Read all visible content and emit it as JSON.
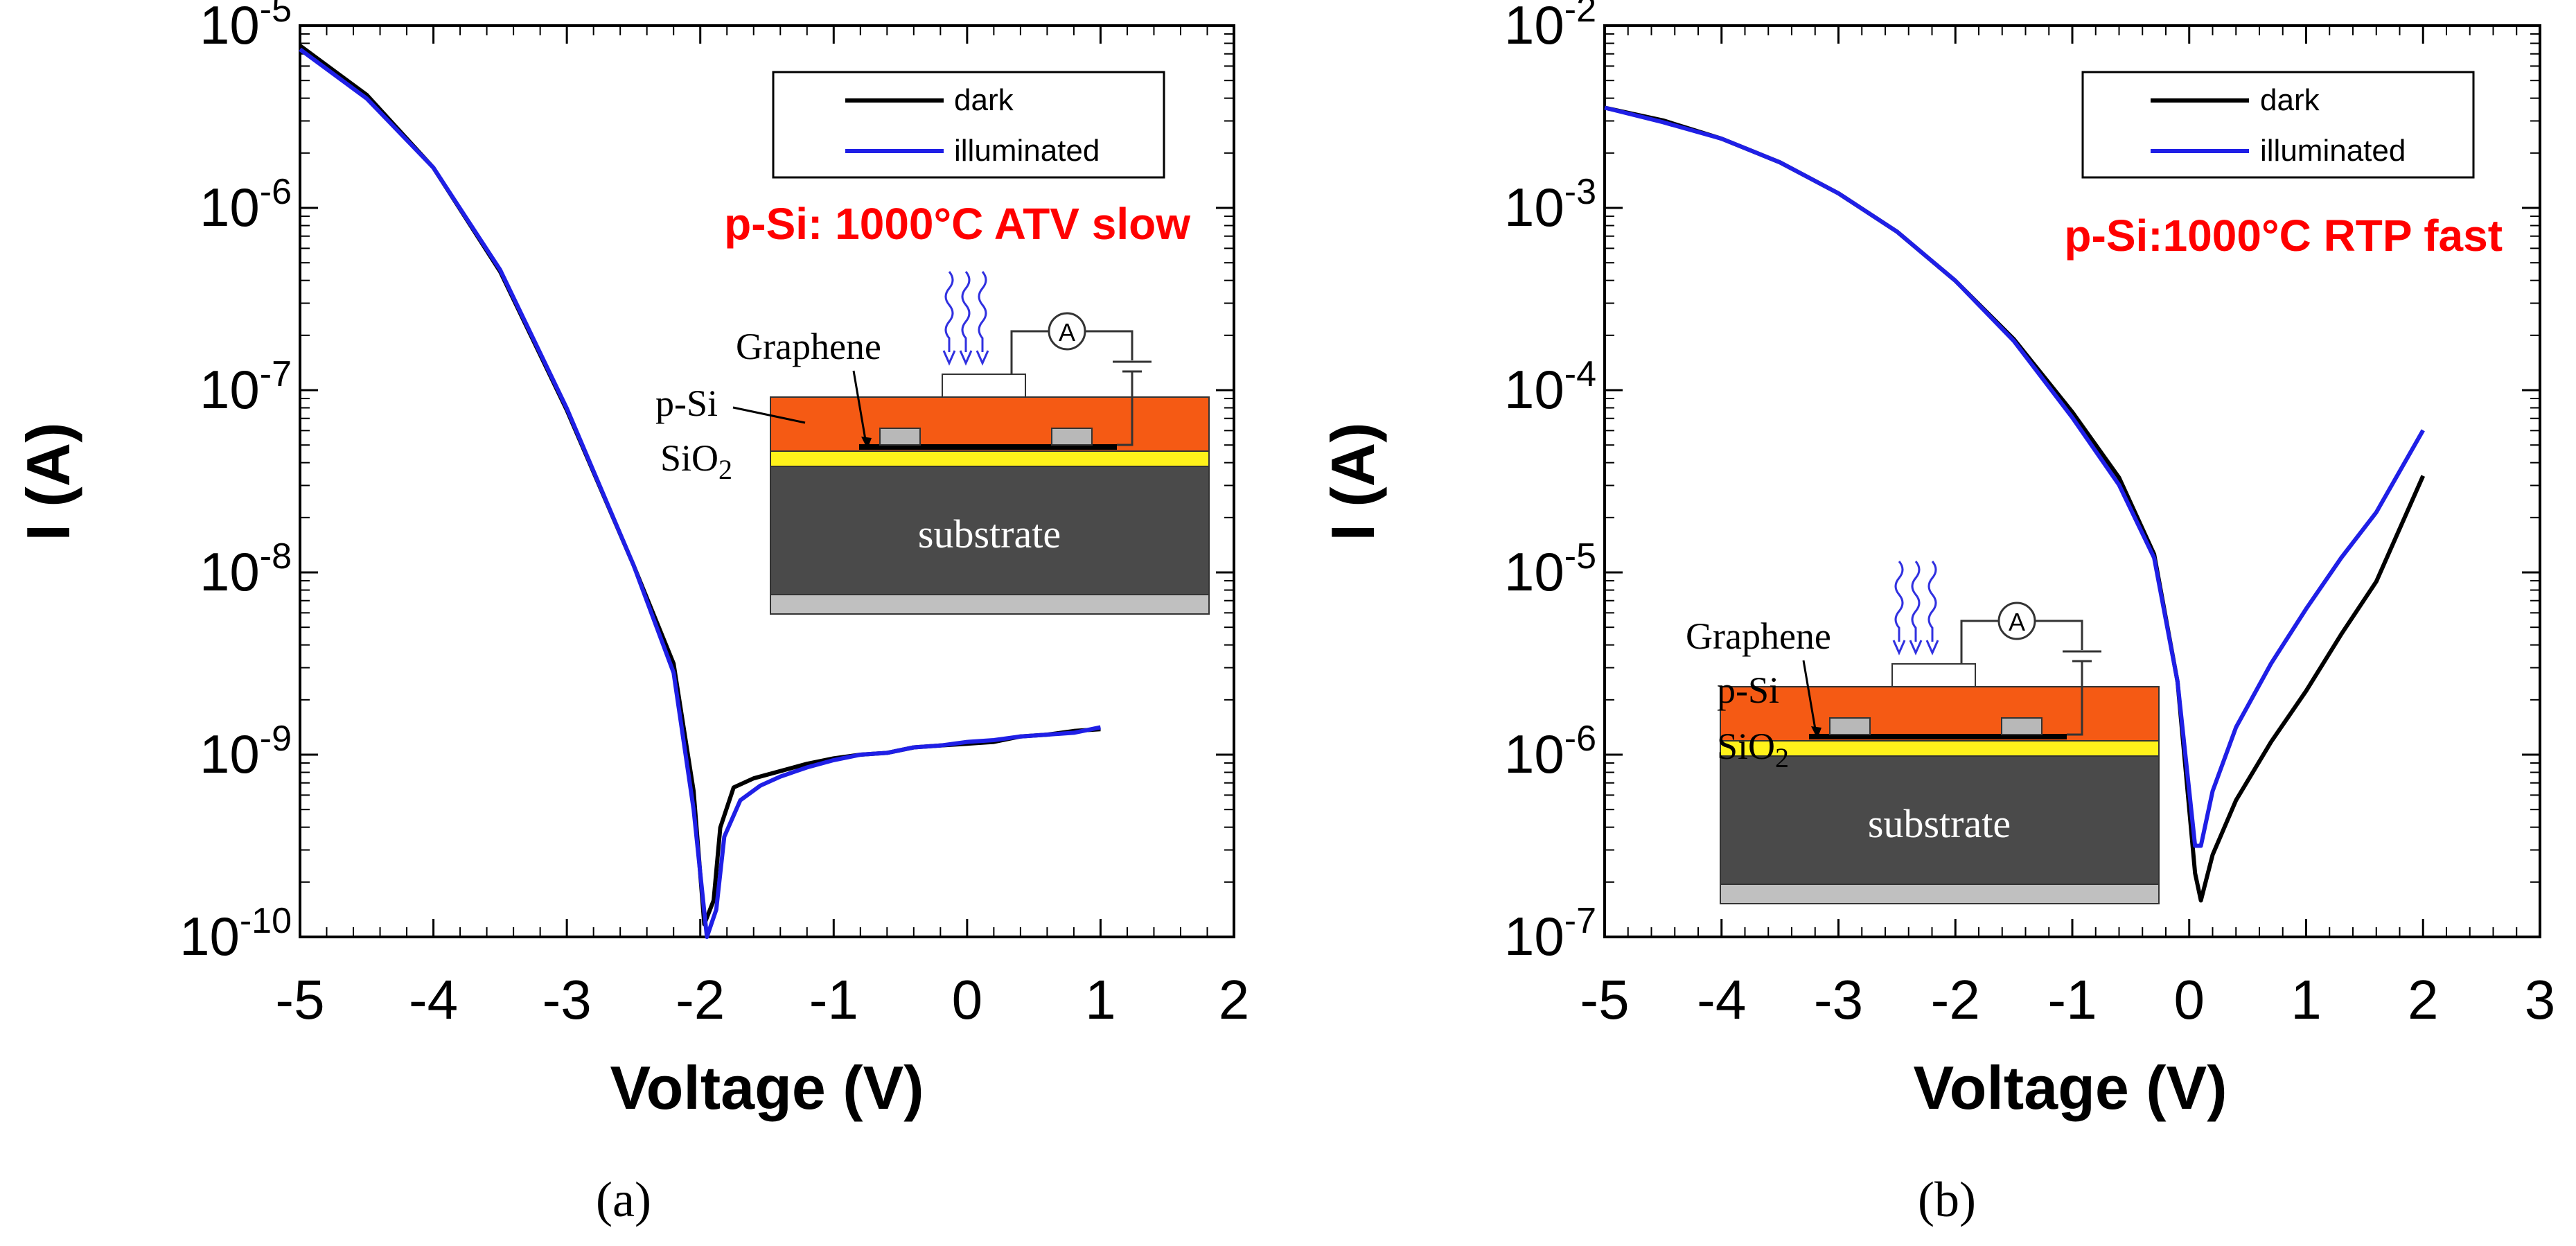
{
  "colors": {
    "dark": "#000000",
    "illuminated": "#1f1fe6",
    "annotation": "#ff0000",
    "psi_layer": "#f55a14",
    "sio2_layer": "#fff21a",
    "substrate": "#4a4a4a",
    "base_layer": "#c0c0c0",
    "contact": "#b8b8b8",
    "light_waves": "#3030e0"
  },
  "chart_data": [
    {
      "type": "line",
      "panel_label": "(a)",
      "annotation": "p-Si: 1000°C ATV slow",
      "xlabel": "Voltage (V)",
      "ylabel": "I (A)",
      "xlim": [
        -5,
        2
      ],
      "ylim_exp": [
        -10,
        -5
      ],
      "yscale": "log",
      "xticks": [
        "-5",
        "-4",
        "-3",
        "-2",
        "-1",
        "0",
        "1",
        "2"
      ],
      "yticks": [
        {
          "base": "10",
          "exp": "-10"
        },
        {
          "base": "10",
          "exp": "-9"
        },
        {
          "base": "10",
          "exp": "-8"
        },
        {
          "base": "10",
          "exp": "-7"
        },
        {
          "base": "10",
          "exp": "-6"
        },
        {
          "base": "10",
          "exp": "-5"
        }
      ],
      "legend": {
        "position": "top-right",
        "entries": [
          "dark",
          "illuminated"
        ]
      },
      "series": [
        {
          "name": "dark",
          "x": [
            -5,
            -4.5,
            -4,
            -3.5,
            -3,
            -2.5,
            -2.2,
            -2.05,
            -1.97,
            -1.9,
            -1.85,
            -1.75,
            -1.6,
            -1.4,
            -1.2,
            -1,
            -0.8,
            -0.6,
            -0.4,
            -0.2,
            0,
            0.2,
            0.4,
            0.6,
            0.8,
            1
          ],
          "logy": [
            -5.11,
            -5.38,
            -5.78,
            -6.35,
            -7.11,
            -7.96,
            -8.5,
            -9.2,
            -9.93,
            -9.8,
            -9.4,
            -9.18,
            -9.13,
            -9.09,
            -9.05,
            -9.02,
            -9.0,
            -8.99,
            -8.96,
            -8.95,
            -8.94,
            -8.93,
            -8.9,
            -8.89,
            -8.87,
            -8.86
          ]
        },
        {
          "name": "illuminated",
          "x": [
            -5,
            -4.5,
            -4,
            -3.5,
            -3,
            -2.5,
            -2.2,
            -2.05,
            -1.95,
            -1.88,
            -1.82,
            -1.7,
            -1.55,
            -1.4,
            -1.2,
            -1,
            -0.8,
            -0.6,
            -0.4,
            -0.2,
            0,
            0.2,
            0.4,
            0.6,
            0.8,
            1
          ],
          "logy": [
            -5.13,
            -5.4,
            -5.78,
            -6.34,
            -7.1,
            -7.96,
            -8.55,
            -9.3,
            -10.0,
            -9.85,
            -9.45,
            -9.25,
            -9.17,
            -9.12,
            -9.07,
            -9.03,
            -9.0,
            -8.99,
            -8.96,
            -8.95,
            -8.93,
            -8.92,
            -8.9,
            -8.89,
            -8.88,
            -8.85
          ]
        }
      ],
      "inset": {
        "graphene_label": "Graphene",
        "psi_label": "p-Si",
        "sio2_label": "SiO",
        "sio2_subscript": "2",
        "substrate_label": "substrate",
        "ammeter_label": "A"
      }
    },
    {
      "type": "line",
      "panel_label": "(b)",
      "annotation": "p-Si:1000°C RTP fast",
      "xlabel": "Voltage (V)",
      "ylabel": "I (A)",
      "xlim": [
        -5,
        3
      ],
      "ylim_exp": [
        -7,
        -2
      ],
      "yscale": "log",
      "xticks": [
        "-5",
        "-4",
        "-3",
        "-2",
        "-1",
        "0",
        "1",
        "2",
        "3"
      ],
      "yticks": [
        {
          "base": "10",
          "exp": "-7"
        },
        {
          "base": "10",
          "exp": "-6"
        },
        {
          "base": "10",
          "exp": "-5"
        },
        {
          "base": "10",
          "exp": "-4"
        },
        {
          "base": "10",
          "exp": "-3"
        },
        {
          "base": "10",
          "exp": "-2"
        }
      ],
      "legend": {
        "position": "top-right",
        "entries": [
          "dark",
          "illuminated"
        ]
      },
      "series": [
        {
          "name": "dark",
          "x": [
            -5,
            -4.5,
            -4,
            -3.5,
            -3,
            -2.5,
            -2,
            -1.5,
            -1,
            -0.6,
            -0.3,
            -0.1,
            0,
            0.05,
            0.1,
            0.2,
            0.4,
            0.7,
            1,
            1.3,
            1.6,
            2
          ],
          "logy": [
            -2.45,
            -2.52,
            -2.62,
            -2.75,
            -2.92,
            -3.13,
            -3.4,
            -3.72,
            -4.12,
            -4.48,
            -4.9,
            -5.6,
            -6.3,
            -6.65,
            -6.8,
            -6.55,
            -6.25,
            -5.93,
            -5.65,
            -5.34,
            -5.05,
            -4.47
          ]
        },
        {
          "name": "illuminated",
          "x": [
            -5,
            -4.5,
            -4,
            -3.5,
            -3,
            -2.5,
            -2,
            -1.5,
            -1,
            -0.6,
            -0.3,
            -0.1,
            0,
            0.05,
            0.1,
            0.2,
            0.4,
            0.7,
            1,
            1.3,
            1.6,
            2
          ],
          "logy": [
            -2.45,
            -2.53,
            -2.62,
            -2.75,
            -2.92,
            -3.13,
            -3.4,
            -3.73,
            -4.15,
            -4.52,
            -4.92,
            -5.6,
            -6.2,
            -6.5,
            -6.5,
            -6.2,
            -5.85,
            -5.5,
            -5.2,
            -4.92,
            -4.67,
            -4.22
          ]
        }
      ],
      "inset": {
        "graphene_label": "Graphene",
        "psi_label": "p-Si",
        "sio2_label": "SiO",
        "sio2_subscript": "2",
        "substrate_label": "substrate",
        "ammeter_label": "A"
      }
    }
  ]
}
